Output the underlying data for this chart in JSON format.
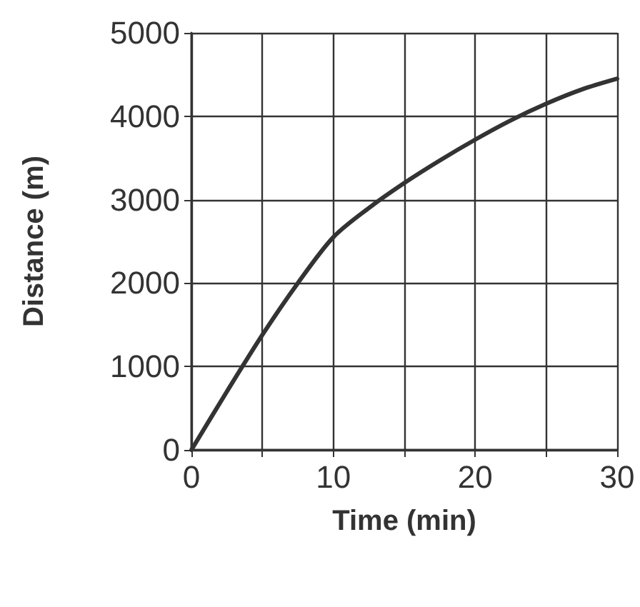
{
  "chart_data": {
    "type": "line",
    "xlabel": "Time (min)",
    "ylabel": "Distance (m)",
    "x": [
      0,
      2.5,
      5,
      7.5,
      10,
      12.5,
      15,
      17.5,
      20,
      22.5,
      25,
      27.5,
      30
    ],
    "series": [
      {
        "color": "#333333",
        "values": [
          0,
          700,
          1380,
          2000,
          2550,
          2900,
          3200,
          3470,
          3720,
          3950,
          4150,
          4320,
          4450
        ]
      }
    ],
    "xlim": [
      0,
      30
    ],
    "xticks": [
      0,
      {
        "value": 5,
        "label": null
      },
      10,
      {
        "value": 15,
        "label": null
      },
      20,
      {
        "value": 25,
        "label": null
      },
      30
    ],
    "ylim": [
      0,
      5000
    ],
    "yticks": [
      0,
      1000,
      2000,
      3000,
      4000,
      5000
    ],
    "grid": true,
    "marker": "none",
    "line_style": "solid"
  }
}
